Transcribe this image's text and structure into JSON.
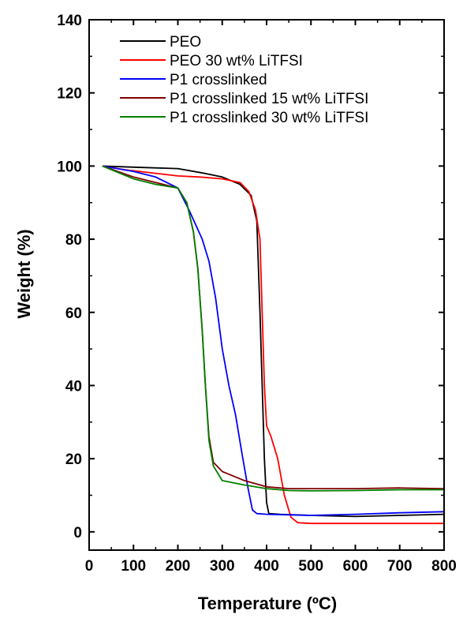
{
  "chart_data": {
    "type": "line",
    "xlabel": "Temperature (ºC)",
    "ylabel": "Weight (%)",
    "xlim": [
      0,
      800
    ],
    "ylim": [
      -5,
      140
    ],
    "x_ticks": [
      0,
      100,
      200,
      300,
      400,
      500,
      600,
      700,
      800
    ],
    "y_ticks": [
      0,
      20,
      40,
      60,
      80,
      100,
      120,
      140
    ],
    "x_tick_labels": [
      "0",
      "100",
      "200",
      "300",
      "400",
      "500",
      "600",
      "700",
      "800"
    ],
    "y_tick_labels": [
      "0",
      "20",
      "40",
      "60",
      "80",
      "100",
      "120",
      "140"
    ],
    "grid": false,
    "legend_position": "top-left",
    "series": [
      {
        "name": "PEO",
        "color": "#000000",
        "points": [
          [
            30,
            100
          ],
          [
            100,
            99.7
          ],
          [
            200,
            99.3
          ],
          [
            260,
            98
          ],
          [
            300,
            97
          ],
          [
            340,
            95
          ],
          [
            365,
            92
          ],
          [
            378,
            85
          ],
          [
            385,
            60
          ],
          [
            390,
            40
          ],
          [
            395,
            20
          ],
          [
            400,
            8
          ],
          [
            405,
            5
          ],
          [
            430,
            4.8
          ],
          [
            500,
            4.5
          ],
          [
            600,
            4.2
          ],
          [
            700,
            4.5
          ],
          [
            800,
            4.8
          ]
        ]
      },
      {
        "name": "PEO 30 wt% LiTFSI",
        "color": "#ff0000",
        "points": [
          [
            30,
            100
          ],
          [
            80,
            99
          ],
          [
            150,
            98
          ],
          [
            200,
            97.3
          ],
          [
            250,
            97
          ],
          [
            300,
            96.5
          ],
          [
            340,
            95.5
          ],
          [
            360,
            93
          ],
          [
            375,
            88
          ],
          [
            385,
            80
          ],
          [
            390,
            60
          ],
          [
            395,
            40
          ],
          [
            400,
            29
          ],
          [
            410,
            26
          ],
          [
            425,
            20
          ],
          [
            440,
            10
          ],
          [
            455,
            4
          ],
          [
            470,
            2.5
          ],
          [
            500,
            2.3
          ],
          [
            600,
            2.3
          ],
          [
            700,
            2.3
          ],
          [
            800,
            2.3
          ]
        ]
      },
      {
        "name": "P1 crosslinked",
        "color": "#0000ff",
        "points": [
          [
            30,
            100
          ],
          [
            100,
            98.5
          ],
          [
            150,
            97
          ],
          [
            200,
            94
          ],
          [
            225,
            88
          ],
          [
            240,
            84
          ],
          [
            255,
            80
          ],
          [
            270,
            74
          ],
          [
            285,
            64
          ],
          [
            300,
            50
          ],
          [
            315,
            40
          ],
          [
            330,
            32
          ],
          [
            345,
            21
          ],
          [
            358,
            12
          ],
          [
            368,
            6
          ],
          [
            378,
            5
          ],
          [
            400,
            4.8
          ],
          [
            500,
            4.5
          ],
          [
            600,
            4.8
          ],
          [
            700,
            5.2
          ],
          [
            800,
            5.5
          ]
        ]
      },
      {
        "name": "P1 crosslinked 15 wt% LiTFSI",
        "color": "#800000",
        "points": [
          [
            30,
            100
          ],
          [
            100,
            97
          ],
          [
            150,
            95.5
          ],
          [
            200,
            94
          ],
          [
            220,
            90
          ],
          [
            235,
            82
          ],
          [
            245,
            72
          ],
          [
            255,
            55
          ],
          [
            262,
            40
          ],
          [
            270,
            26
          ],
          [
            280,
            19
          ],
          [
            300,
            16.5
          ],
          [
            350,
            14
          ],
          [
            400,
            12.3
          ],
          [
            450,
            11.8
          ],
          [
            500,
            11.8
          ],
          [
            600,
            11.8
          ],
          [
            700,
            12
          ],
          [
            800,
            11.8
          ]
        ]
      },
      {
        "name": "P1 crosslinked 30 wt% LiTFSI",
        "color": "#008000",
        "points": [
          [
            30,
            100
          ],
          [
            100,
            96.5
          ],
          [
            150,
            95
          ],
          [
            200,
            94
          ],
          [
            220,
            90
          ],
          [
            235,
            82
          ],
          [
            245,
            72
          ],
          [
            255,
            55
          ],
          [
            262,
            40
          ],
          [
            270,
            25
          ],
          [
            280,
            18
          ],
          [
            300,
            14
          ],
          [
            350,
            12.8
          ],
          [
            400,
            11.8
          ],
          [
            450,
            11.3
          ],
          [
            500,
            11.2
          ],
          [
            600,
            11.3
          ],
          [
            700,
            11.5
          ],
          [
            800,
            11.5
          ]
        ]
      }
    ]
  }
}
